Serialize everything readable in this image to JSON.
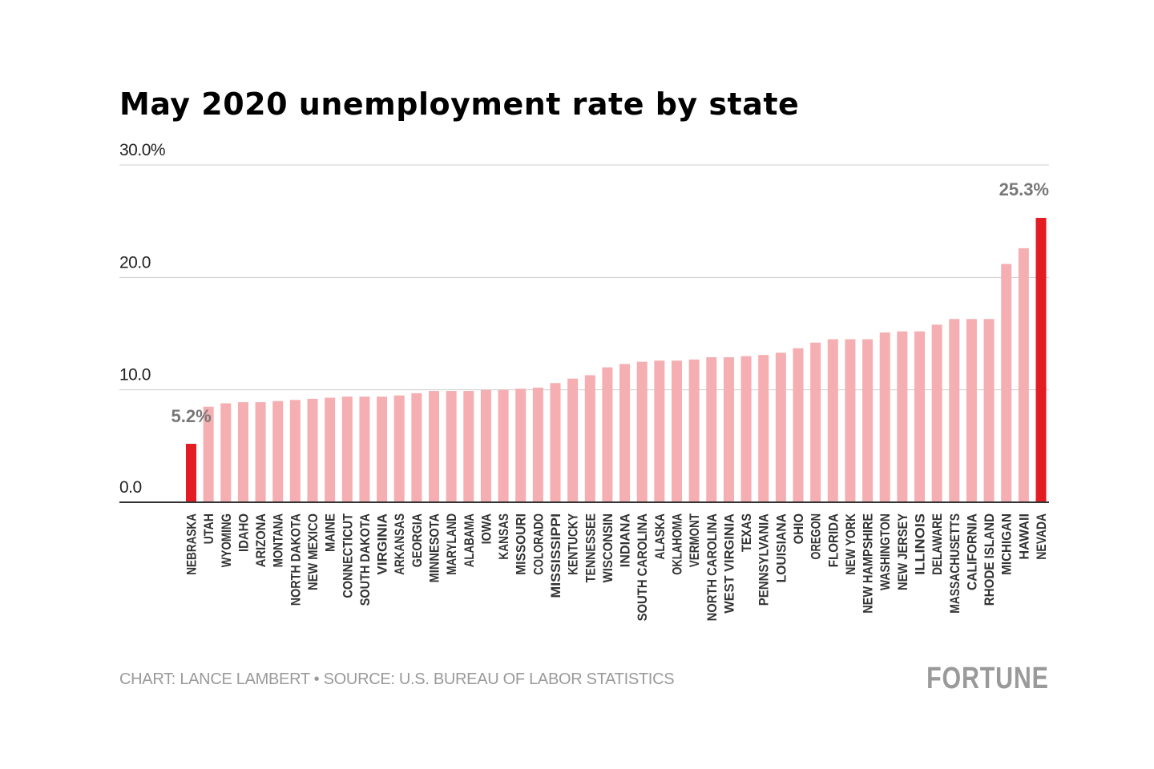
{
  "chart_data": {
    "type": "bar",
    "title": "May 2020 unemployment rate by state",
    "ylim": [
      0,
      30
    ],
    "yticks": [
      {
        "value": 0,
        "label": "0.0"
      },
      {
        "value": 10,
        "label": "10.0"
      },
      {
        "value": 20,
        "label": "20.0"
      },
      {
        "value": 30,
        "label": "30.0%"
      }
    ],
    "grid": true,
    "categories": [
      "NEBRASKA",
      "UTAH",
      "WYOMING",
      "IDAHO",
      "ARIZONA",
      "MONTANA",
      "NORTH DAKOTA",
      "NEW MEXICO",
      "MAINE",
      "CONNECTICUT",
      "SOUTH DAKOTA",
      "VIRGINIA",
      "ARKANSAS",
      "GEORGIA",
      "MINNESOTA",
      "MARYLAND",
      "ALABAMA",
      "IOWA",
      "KANSAS",
      "MISSOURI",
      "COLORADO",
      "MISSISSIPPI",
      "KENTUCKY",
      "TENNESSEE",
      "WISCONSIN",
      "INDIANA",
      "SOUTH CAROLINA",
      "ALASKA",
      "OKLAHOMA",
      "VERMONT",
      "NORTH CAROLINA",
      "WEST VIRGINIA",
      "TEXAS",
      "PENNSYLVANIA",
      "LOUISIANA",
      "OHIO",
      "OREGON",
      "FLORIDA",
      "NEW YORK",
      "NEW HAMPSHIRE",
      "WASHINGTON",
      "NEW JERSEY",
      "ILLINOIS",
      "DELAWARE",
      "MASSACHUSETTS",
      "CALIFORNIA",
      "RHODE ISLAND",
      "MICHIGAN",
      "HAWAII",
      "NEVADA"
    ],
    "values": [
      5.2,
      8.5,
      8.8,
      8.9,
      8.9,
      9.0,
      9.1,
      9.2,
      9.3,
      9.4,
      9.4,
      9.4,
      9.5,
      9.7,
      9.9,
      9.9,
      9.9,
      10.0,
      10.0,
      10.1,
      10.2,
      10.6,
      11.0,
      11.3,
      12.0,
      12.3,
      12.5,
      12.6,
      12.6,
      12.7,
      12.9,
      12.9,
      13.0,
      13.1,
      13.3,
      13.7,
      14.2,
      14.5,
      14.5,
      14.5,
      15.1,
      15.2,
      15.2,
      15.8,
      16.3,
      16.3,
      16.3,
      21.2,
      22.6,
      25.3
    ],
    "annotations": [
      {
        "category": "NEBRASKA",
        "label": "5.2%"
      },
      {
        "category": "NEVADA",
        "label": "25.3%"
      }
    ],
    "colors": {
      "default": "#f5aeb1",
      "highlight": "#e31b23",
      "grid": "#cccccc",
      "axis": "#333333",
      "label": "#777777"
    }
  },
  "footer": {
    "credit": "CHART: LANCE LAMBERT • SOURCE: U.S. BUREAU OF LABOR STATISTICS",
    "logo": "FORTUNE"
  }
}
